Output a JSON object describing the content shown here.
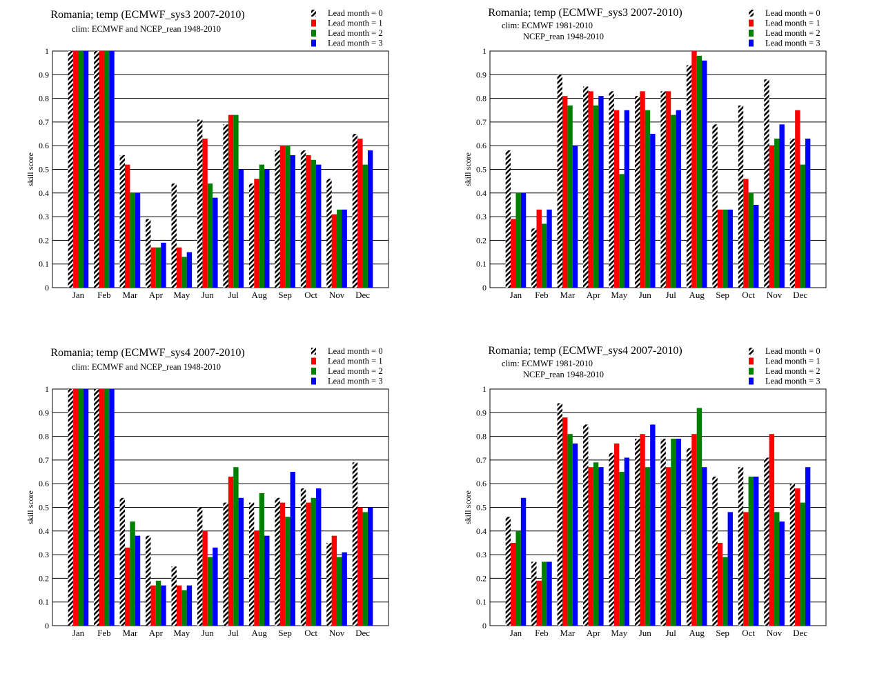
{
  "legend": [
    "Lead month = 0",
    "Lead month = 1",
    "Lead month = 2",
    "Lead month = 3"
  ],
  "colors": {
    "lead0": "hatched black/white",
    "lead1": "#ff0000",
    "lead2": "#008000",
    "lead3": "#0000ff"
  },
  "chart_data": [
    {
      "type": "bar",
      "title": "Romania; temp (ECMWF_sys3 2007-2010)",
      "subtitle": [
        "clim: ECMWF and NCEP_rean 1948-2010"
      ],
      "xlabel": "",
      "ylabel": "skill score",
      "ylim": [
        0,
        1
      ],
      "yticks": [
        "0",
        "0.1",
        "0.2",
        "0.3",
        "0.4",
        "0.5",
        "0.6",
        "0.7",
        "0.8",
        "0.9",
        "1"
      ],
      "grid": true,
      "legend_position": "top-right",
      "categories": [
        "Jan",
        "Feb",
        "Mar",
        "Apr",
        "May",
        "Jun",
        "Jul",
        "Aug",
        "Sep",
        "Oct",
        "Nov",
        "Dec"
      ],
      "series": [
        {
          "name": "Lead month = 0",
          "values": [
            1,
            1,
            0.56,
            0.29,
            0.44,
            0.71,
            0.69,
            0.44,
            0.58,
            0.58,
            0.46,
            0.65
          ]
        },
        {
          "name": "Lead month = 1",
          "values": [
            1,
            1,
            0.52,
            0.17,
            0.17,
            0.63,
            0.73,
            0.46,
            0.6,
            0.56,
            0.31,
            0.63
          ]
        },
        {
          "name": "Lead month = 2",
          "values": [
            1,
            1,
            0.4,
            0.17,
            0.13,
            0.44,
            0.73,
            0.52,
            0.6,
            0.54,
            0.33,
            0.52
          ]
        },
        {
          "name": "Lead month = 3",
          "values": [
            1,
            1,
            0.4,
            0.19,
            0.15,
            0.38,
            0.5,
            0.5,
            0.56,
            0.52,
            0.33,
            0.58
          ]
        }
      ]
    },
    {
      "type": "bar",
      "title": "Romania; temp (ECMWF_sys3 2007-2010)",
      "subtitle": [
        "clim: ECMWF 1981-2010",
        "NCEP_rean 1948-2010"
      ],
      "xlabel": "",
      "ylabel": "skill score",
      "ylim": [
        0,
        1
      ],
      "yticks": [
        "0",
        "0.1",
        "0.2",
        "0.3",
        "0.4",
        "0.5",
        "0.6",
        "0.7",
        "0.8",
        "0.9",
        "1"
      ],
      "grid": true,
      "legend_position": "top-right",
      "categories": [
        "Jan",
        "Feb",
        "Mar",
        "Apr",
        "May",
        "Jun",
        "Jul",
        "Aug",
        "Sep",
        "Oct",
        "Nov",
        "Dec"
      ],
      "series": [
        {
          "name": "Lead month = 0",
          "values": [
            0.58,
            0.25,
            0.9,
            0.85,
            0.83,
            0.81,
            0.83,
            0.94,
            0.69,
            0.77,
            0.88,
            0.63
          ]
        },
        {
          "name": "Lead month = 1",
          "values": [
            0.29,
            0.33,
            0.81,
            0.83,
            0.75,
            0.83,
            0.83,
            1,
            0.33,
            0.46,
            0.6,
            0.75
          ]
        },
        {
          "name": "Lead month = 2",
          "values": [
            0.4,
            0.27,
            0.77,
            0.77,
            0.48,
            0.75,
            0.73,
            0.98,
            0.33,
            0.4,
            0.63,
            0.52
          ]
        },
        {
          "name": "Lead month = 3",
          "values": [
            0.4,
            0.33,
            0.6,
            0.81,
            0.75,
            0.65,
            0.75,
            0.96,
            0.33,
            0.35,
            0.69,
            0.63
          ]
        }
      ]
    },
    {
      "type": "bar",
      "title": "Romania; temp (ECMWF_sys4 2007-2010)",
      "subtitle": [
        "clim: ECMWF and NCEP_rean 1948-2010"
      ],
      "xlabel": "",
      "ylabel": "skill score",
      "ylim": [
        0,
        1
      ],
      "yticks": [
        "0",
        "0.1",
        "0.2",
        "0.3",
        "0.4",
        "0.5",
        "0.6",
        "0.7",
        "0.8",
        "0.9",
        "1"
      ],
      "grid": true,
      "legend_position": "top-right",
      "categories": [
        "Jan",
        "Feb",
        "Mar",
        "Apr",
        "May",
        "Jun",
        "Jul",
        "Aug",
        "Sep",
        "Oct",
        "Nov",
        "Dec"
      ],
      "series": [
        {
          "name": "Lead month = 0",
          "values": [
            1,
            1,
            0.54,
            0.38,
            0.25,
            0.5,
            0.52,
            0.52,
            0.54,
            0.58,
            0.35,
            0.69
          ]
        },
        {
          "name": "Lead month = 1",
          "values": [
            1,
            1,
            0.33,
            0.17,
            0.17,
            0.4,
            0.63,
            0.4,
            0.52,
            0.52,
            0.38,
            0.5
          ]
        },
        {
          "name": "Lead month = 2",
          "values": [
            1,
            1,
            0.44,
            0.19,
            0.15,
            0.29,
            0.67,
            0.56,
            0.46,
            0.54,
            0.29,
            0.48
          ]
        },
        {
          "name": "Lead month = 3",
          "values": [
            1,
            1,
            0.38,
            0.17,
            0.17,
            0.33,
            0.54,
            0.38,
            0.65,
            0.58,
            0.31,
            0.5
          ]
        }
      ]
    },
    {
      "type": "bar",
      "title": "Romania; temp (ECMWF_sys4 2007-2010)",
      "subtitle": [
        "clim: ECMWF 1981-2010",
        "NCEP_rean 1948-2010"
      ],
      "xlabel": "",
      "ylabel": "skill score",
      "ylim": [
        0,
        1
      ],
      "yticks": [
        "0",
        "0.1",
        "0.2",
        "0.3",
        "0.4",
        "0.5",
        "0.6",
        "0.7",
        "0.8",
        "0.9",
        "1"
      ],
      "grid": true,
      "legend_position": "top-right",
      "categories": [
        "Jan",
        "Feb",
        "Mar",
        "Apr",
        "May",
        "Jun",
        "Jul",
        "Aug",
        "Sep",
        "Oct",
        "Nov",
        "Dec"
      ],
      "series": [
        {
          "name": "Lead month = 0",
          "values": [
            0.46,
            0.27,
            0.94,
            0.85,
            0.73,
            0.79,
            0.79,
            0.75,
            0.63,
            0.67,
            0.71,
            0.6
          ]
        },
        {
          "name": "Lead month = 1",
          "values": [
            0.35,
            0.19,
            0.88,
            0.67,
            0.77,
            0.81,
            0.67,
            0.81,
            0.35,
            0.48,
            0.81,
            0.58
          ]
        },
        {
          "name": "Lead month = 2",
          "values": [
            0.4,
            0.27,
            0.81,
            0.69,
            0.65,
            0.67,
            0.79,
            0.92,
            0.29,
            0.63,
            0.48,
            0.52
          ]
        },
        {
          "name": "Lead month = 3",
          "values": [
            0.54,
            0.27,
            0.77,
            0.67,
            0.71,
            0.85,
            0.79,
            0.67,
            0.48,
            0.63,
            0.44,
            0.67
          ]
        }
      ]
    }
  ]
}
